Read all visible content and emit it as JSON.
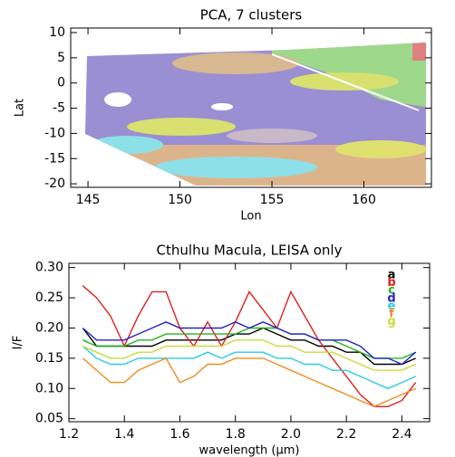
{
  "chart_data": [
    {
      "type": "map",
      "title": "PCA, 7 clusters",
      "xlabel": "Lon",
      "ylabel": "Lat",
      "xlim": [
        144.06,
        163.67
      ],
      "ylim": [
        -20.7,
        10.9
      ],
      "xticks": [
        145,
        150,
        155,
        160
      ],
      "yticks": [
        -20,
        -15,
        -10,
        -5,
        0,
        5,
        10
      ]
    },
    {
      "type": "line",
      "title": "Cthulhu Macula, LEISA only",
      "xlabel": "wavelength (μm)",
      "ylabel": "I/F",
      "xlim": [
        1.2,
        2.5
      ],
      "ylim": [
        0.045,
        0.307
      ],
      "xticks": [
        1.2,
        1.4,
        1.6,
        1.8,
        {
          "value": 2.0,
          "label": "2.0"
        },
        2.2,
        2.4
      ],
      "yticks": [
        0.05,
        {
          "value": 0.1,
          "label": "0.10"
        },
        0.15,
        {
          "value": 0.2,
          "label": "0.20"
        },
        0.25,
        {
          "value": 0.3,
          "label": "0.30"
        }
      ],
      "x": [
        1.25,
        1.3,
        1.35,
        1.4,
        1.45,
        1.5,
        1.55,
        1.6,
        1.65,
        1.7,
        1.75,
        1.8,
        1.85,
        1.9,
        1.95,
        2.0,
        2.05,
        2.1,
        2.15,
        2.2,
        2.25,
        2.3,
        2.35,
        2.4,
        2.45
      ],
      "series": [
        {
          "name": "a",
          "color": "#000000",
          "values": [
            0.2,
            0.17,
            0.17,
            0.17,
            0.17,
            0.17,
            0.18,
            0.18,
            0.18,
            0.18,
            0.18,
            0.19,
            0.19,
            0.2,
            0.19,
            0.18,
            0.18,
            0.17,
            0.17,
            0.16,
            0.16,
            0.14,
            0.14,
            0.14,
            0.15
          ]
        },
        {
          "name": "b",
          "color": "#e0201c",
          "values": [
            0.27,
            0.25,
            0.22,
            0.17,
            0.22,
            0.26,
            0.26,
            0.2,
            0.17,
            0.21,
            0.17,
            0.21,
            0.26,
            0.23,
            0.2,
            0.26,
            0.22,
            0.18,
            0.15,
            0.12,
            0.09,
            0.07,
            0.07,
            0.08,
            0.11
          ]
        },
        {
          "name": "c",
          "color": "#22b422",
          "values": [
            0.18,
            0.17,
            0.17,
            0.17,
            0.18,
            0.18,
            0.19,
            0.19,
            0.19,
            0.19,
            0.19,
            0.19,
            0.2,
            0.2,
            0.2,
            0.19,
            0.19,
            0.18,
            0.18,
            0.17,
            0.16,
            0.15,
            0.15,
            0.15,
            0.16
          ]
        },
        {
          "name": "d",
          "color": "#2424c4",
          "values": [
            0.2,
            0.18,
            0.18,
            0.18,
            0.19,
            0.2,
            0.21,
            0.2,
            0.2,
            0.2,
            0.2,
            0.21,
            0.2,
            0.21,
            0.2,
            0.19,
            0.19,
            0.18,
            0.18,
            0.18,
            0.17,
            0.15,
            0.15,
            0.14,
            0.16
          ]
        },
        {
          "name": "e",
          "color": "#28cce8",
          "values": [
            0.17,
            0.15,
            0.14,
            0.14,
            0.15,
            0.15,
            0.15,
            0.15,
            0.15,
            0.16,
            0.15,
            0.16,
            0.16,
            0.16,
            0.15,
            0.15,
            0.14,
            0.14,
            0.13,
            0.13,
            0.12,
            0.11,
            0.1,
            0.11,
            0.12
          ]
        },
        {
          "name": "f",
          "color": "#f08c1e",
          "values": [
            0.15,
            0.13,
            0.11,
            0.11,
            0.13,
            0.14,
            0.15,
            0.11,
            0.12,
            0.14,
            0.14,
            0.15,
            0.15,
            0.15,
            0.14,
            0.13,
            0.12,
            0.11,
            0.1,
            0.09,
            0.08,
            0.07,
            0.08,
            0.09,
            0.1
          ]
        },
        {
          "name": "g",
          "color": "#c8dc3c",
          "values": [
            0.17,
            0.16,
            0.15,
            0.15,
            0.16,
            0.16,
            0.17,
            0.17,
            0.17,
            0.17,
            0.17,
            0.18,
            0.18,
            0.18,
            0.17,
            0.17,
            0.16,
            0.16,
            0.16,
            0.15,
            0.14,
            0.13,
            0.13,
            0.13,
            0.14
          ]
        }
      ]
    }
  ]
}
